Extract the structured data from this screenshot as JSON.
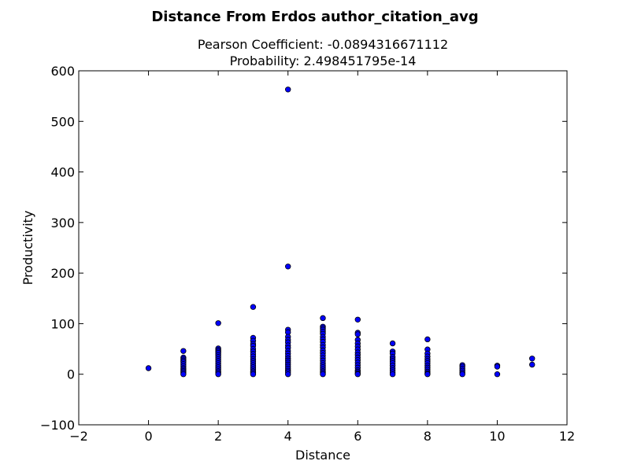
{
  "chart_data": {
    "type": "scatter",
    "title": "Distance From Erdos author_citation_avg",
    "subtitle_lines": [
      "Pearson Coefficient: -0.0894316671112",
      "Probability: 2.498451795e-14"
    ],
    "xlabel": "Distance",
    "ylabel": "Productivity",
    "xlim": [
      -2,
      12
    ],
    "ylim": [
      -100,
      600
    ],
    "xticks": [
      -2,
      0,
      2,
      4,
      6,
      8,
      10,
      12
    ],
    "yticks": [
      -100,
      0,
      100,
      200,
      300,
      400,
      500,
      600
    ],
    "xtick_labels": [
      "−2",
      "0",
      "2",
      "4",
      "6",
      "8",
      "10",
      "12"
    ],
    "ytick_labels": [
      "−100",
      "0",
      "100",
      "200",
      "300",
      "400",
      "500",
      "600"
    ],
    "grid": false,
    "legend": "none",
    "marker_color": "#0000ff",
    "marker_edge_color": "#000000",
    "points": [
      [
        0,
        12
      ],
      [
        1,
        46
      ],
      [
        1,
        33
      ],
      [
        1,
        30
      ],
      [
        1,
        27
      ],
      [
        1,
        24
      ],
      [
        1,
        20
      ],
      [
        1,
        16
      ],
      [
        1,
        12
      ],
      [
        1,
        9
      ],
      [
        1,
        6
      ],
      [
        1,
        3
      ],
      [
        1,
        0
      ],
      [
        2,
        101
      ],
      [
        2,
        51
      ],
      [
        2,
        48
      ],
      [
        2,
        45
      ],
      [
        2,
        42
      ],
      [
        2,
        38
      ],
      [
        2,
        34
      ],
      [
        2,
        30
      ],
      [
        2,
        26
      ],
      [
        2,
        22
      ],
      [
        2,
        18
      ],
      [
        2,
        14
      ],
      [
        2,
        10
      ],
      [
        2,
        6
      ],
      [
        2,
        3
      ],
      [
        2,
        0
      ],
      [
        3,
        133
      ],
      [
        3,
        72
      ],
      [
        3,
        66
      ],
      [
        3,
        60
      ],
      [
        3,
        56
      ],
      [
        3,
        50
      ],
      [
        3,
        45
      ],
      [
        3,
        40
      ],
      [
        3,
        35
      ],
      [
        3,
        30
      ],
      [
        3,
        26
      ],
      [
        3,
        22
      ],
      [
        3,
        18
      ],
      [
        3,
        14
      ],
      [
        3,
        10
      ],
      [
        3,
        6
      ],
      [
        3,
        3
      ],
      [
        3,
        0
      ],
      [
        4,
        563
      ],
      [
        4,
        213
      ],
      [
        4,
        88
      ],
      [
        4,
        83
      ],
      [
        4,
        74
      ],
      [
        4,
        68
      ],
      [
        4,
        63
      ],
      [
        4,
        57
      ],
      [
        4,
        52
      ],
      [
        4,
        46
      ],
      [
        4,
        41
      ],
      [
        4,
        36
      ],
      [
        4,
        31
      ],
      [
        4,
        27
      ],
      [
        4,
        23
      ],
      [
        4,
        19
      ],
      [
        4,
        15
      ],
      [
        4,
        11
      ],
      [
        4,
        7
      ],
      [
        4,
        4
      ],
      [
        4,
        0
      ],
      [
        5,
        111
      ],
      [
        5,
        94
      ],
      [
        5,
        91
      ],
      [
        5,
        88
      ],
      [
        5,
        84
      ],
      [
        5,
        80
      ],
      [
        5,
        74
      ],
      [
        5,
        69
      ],
      [
        5,
        64
      ],
      [
        5,
        58
      ],
      [
        5,
        53
      ],
      [
        5,
        47
      ],
      [
        5,
        42
      ],
      [
        5,
        37
      ],
      [
        5,
        32
      ],
      [
        5,
        27
      ],
      [
        5,
        22
      ],
      [
        5,
        18
      ],
      [
        5,
        14
      ],
      [
        5,
        10
      ],
      [
        5,
        6
      ],
      [
        5,
        3
      ],
      [
        5,
        0
      ],
      [
        6,
        108
      ],
      [
        6,
        82
      ],
      [
        6,
        79
      ],
      [
        6,
        68
      ],
      [
        6,
        61
      ],
      [
        6,
        55
      ],
      [
        6,
        49
      ],
      [
        6,
        43
      ],
      [
        6,
        38
      ],
      [
        6,
        33
      ],
      [
        6,
        28
      ],
      [
        6,
        23
      ],
      [
        6,
        18
      ],
      [
        6,
        13
      ],
      [
        6,
        8
      ],
      [
        6,
        5
      ],
      [
        6,
        2
      ],
      [
        6,
        0
      ],
      [
        7,
        61
      ],
      [
        7,
        45
      ],
      [
        7,
        41
      ],
      [
        7,
        34
      ],
      [
        7,
        30
      ],
      [
        7,
        26
      ],
      [
        7,
        22
      ],
      [
        7,
        17
      ],
      [
        7,
        12
      ],
      [
        7,
        8
      ],
      [
        7,
        4
      ],
      [
        7,
        0
      ],
      [
        8,
        69
      ],
      [
        8,
        49
      ],
      [
        8,
        41
      ],
      [
        8,
        35
      ],
      [
        8,
        30
      ],
      [
        8,
        26
      ],
      [
        8,
        22
      ],
      [
        8,
        17
      ],
      [
        8,
        13
      ],
      [
        8,
        9
      ],
      [
        8,
        5
      ],
      [
        8,
        2
      ],
      [
        8,
        0
      ],
      [
        9,
        18
      ],
      [
        9,
        15
      ],
      [
        9,
        11
      ],
      [
        9,
        7
      ],
      [
        9,
        3
      ],
      [
        9,
        0
      ],
      [
        10,
        17
      ],
      [
        10,
        15
      ],
      [
        10,
        0
      ],
      [
        11,
        31
      ],
      [
        11,
        19
      ]
    ]
  }
}
